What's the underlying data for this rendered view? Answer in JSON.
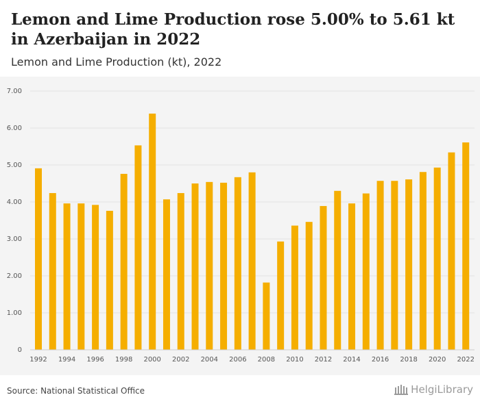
{
  "header": {
    "title": "Lemon and Lime Production rose 5.00% to 5.61 kt in Azerbaijan in 2022",
    "subtitle": "Lemon and Lime Production (kt), 2022"
  },
  "footer": {
    "source": "Source: National Statistical Office",
    "brand": "HelgiLibrary"
  },
  "colors": {
    "bar": "#f5ae00",
    "grid": "#e2e2e2",
    "background": "#f4f4f4"
  },
  "chart_data": {
    "type": "bar",
    "title": "Lemon and Lime Production rose 5.00% to 5.61 kt in Azerbaijan in 2022",
    "subtitle": "Lemon and Lime Production (kt), 2022",
    "categories": [
      "1992",
      "1993",
      "1994",
      "1995",
      "1996",
      "1997",
      "1998",
      "1999",
      "2000",
      "2001",
      "2002",
      "2003",
      "2004",
      "2005",
      "2006",
      "2007",
      "2008",
      "2009",
      "2010",
      "2011",
      "2012",
      "2013",
      "2014",
      "2015",
      "2016",
      "2017",
      "2018",
      "2019",
      "2020",
      "2021",
      "2022"
    ],
    "values": [
      4.91,
      4.24,
      3.96,
      3.96,
      3.92,
      3.76,
      4.76,
      5.53,
      6.39,
      4.07,
      4.24,
      4.5,
      4.54,
      4.52,
      4.67,
      4.8,
      1.82,
      2.93,
      3.36,
      3.46,
      3.89,
      4.3,
      3.96,
      4.23,
      4.57,
      4.57,
      4.61,
      4.81,
      4.93,
      5.34,
      5.61
    ],
    "x_tick_labels": [
      "1992",
      "1994",
      "1996",
      "1998",
      "2000",
      "2002",
      "2004",
      "2006",
      "2008",
      "2010",
      "2012",
      "2014",
      "2016",
      "2018",
      "2020",
      "2022"
    ],
    "y_ticks": [
      0,
      1,
      2,
      3,
      4,
      5,
      6,
      7
    ],
    "y_tick_labels": [
      "0",
      "1.00",
      "2.00",
      "3.00",
      "4.00",
      "5.00",
      "6.00",
      "7.00"
    ],
    "ylim": [
      0,
      7
    ],
    "grid": true,
    "legend": "none"
  }
}
